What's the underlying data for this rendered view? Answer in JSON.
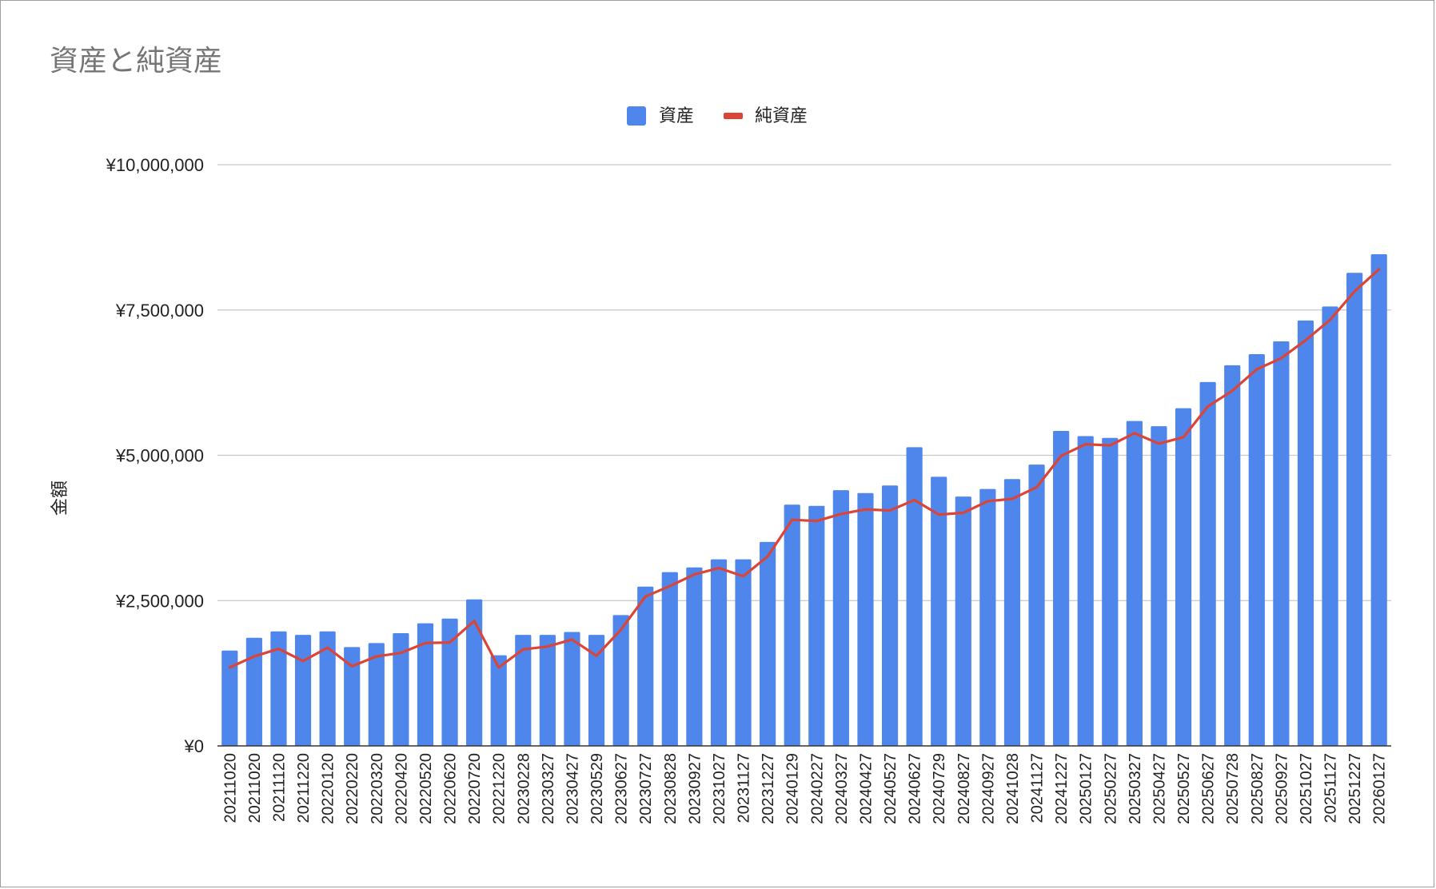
{
  "chart_data": {
    "type": "bar",
    "title": "資産と純資産",
    "xlabel": "",
    "ylabel": "金額",
    "ylim": [
      0,
      10000000
    ],
    "yticks": [
      0,
      2500000,
      5000000,
      7500000,
      10000000
    ],
    "ytick_labels": [
      "¥0",
      "¥2,500,000",
      "¥5,000,000",
      "¥7,500,000",
      "¥10,000,000"
    ],
    "grid": true,
    "legend_position": "top-center",
    "categories": [
      "20211020",
      "20211020",
      "20211120",
      "20211220",
      "20220120",
      "20220220",
      "20220320",
      "20220420",
      "20220520",
      "20220620",
      "20220720",
      "20221220",
      "20230228",
      "20230327",
      "20230427",
      "20230529",
      "20230627",
      "20230727",
      "20230828",
      "20230927",
      "20231027",
      "20231127",
      "20231227",
      "20240129",
      "20240227",
      "20240327",
      "20240427",
      "20240527",
      "20240627",
      "20240729",
      "20240827",
      "20240927",
      "20241028",
      "20241127",
      "20241227",
      "20250127",
      "20250227",
      "20250327",
      "20250427",
      "20250527",
      "20250627",
      "20250728",
      "20250827",
      "20250927",
      "20251027",
      "20251127",
      "20251227",
      "20260127"
    ],
    "series": [
      {
        "name": "資産",
        "kind": "bar",
        "color": "#4f86ec",
        "values": [
          1640000,
          1860000,
          1970000,
          1910000,
          1970000,
          1700000,
          1770000,
          1940000,
          2110000,
          2190000,
          2520000,
          1560000,
          1910000,
          1910000,
          1960000,
          1910000,
          2250000,
          2740000,
          2990000,
          3070000,
          3210000,
          3210000,
          3510000,
          4150000,
          4130000,
          4400000,
          4350000,
          4480000,
          5140000,
          4630000,
          4290000,
          4420000,
          4590000,
          4840000,
          5420000,
          5330000,
          5300000,
          5590000,
          5500000,
          5810000,
          6260000,
          6550000,
          6740000,
          6960000,
          7320000,
          7560000,
          8140000,
          8460000
        ]
      },
      {
        "name": "純資産",
        "kind": "line",
        "color": "#db4437",
        "values": [
          1350000,
          1540000,
          1670000,
          1460000,
          1690000,
          1370000,
          1540000,
          1600000,
          1770000,
          1780000,
          2150000,
          1350000,
          1660000,
          1710000,
          1830000,
          1550000,
          2000000,
          2570000,
          2750000,
          2950000,
          3060000,
          2920000,
          3260000,
          3890000,
          3870000,
          3990000,
          4070000,
          4050000,
          4230000,
          3980000,
          4010000,
          4210000,
          4250000,
          4450000,
          4990000,
          5190000,
          5170000,
          5380000,
          5200000,
          5310000,
          5840000,
          6110000,
          6480000,
          6670000,
          6980000,
          7330000,
          7820000,
          8200000
        ]
      }
    ]
  }
}
